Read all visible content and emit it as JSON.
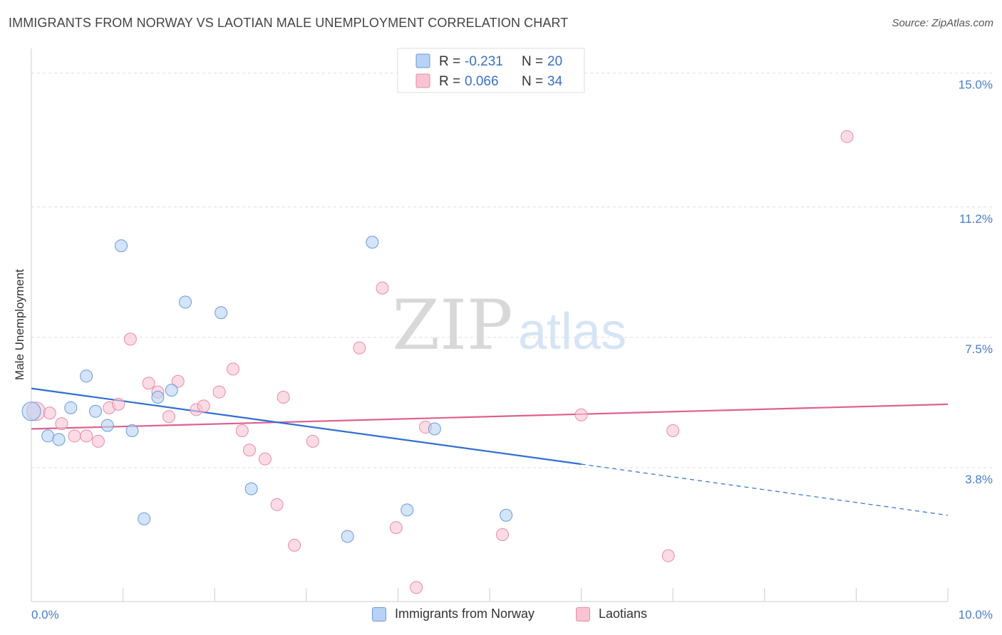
{
  "title": "IMMIGRANTS FROM NORWAY VS LAOTIAN MALE UNEMPLOYMENT CORRELATION CHART",
  "source": "Source: ZipAtlas.com",
  "watermark": {
    "zip": "ZIP",
    "atlas": "atlas"
  },
  "colors": {
    "blue_fill": "#b8d2f5",
    "blue_stroke": "#6a9ad8",
    "blue_line": "#2f6fd0",
    "pink_fill": "#f8c4d4",
    "pink_stroke": "#e88aa8",
    "pink_line": "#e06090",
    "axis_text": "#4a7cc7"
  },
  "legend": {
    "series1": {
      "r_label": "R = ",
      "r_value": "-0.231",
      "n_label": "N = ",
      "n_value": "20"
    },
    "series2": {
      "r_label": "R = ",
      "r_value": "0.066",
      "n_label": "N = ",
      "n_value": "34"
    }
  },
  "chart_data": {
    "type": "scatter",
    "title": "IMMIGRANTS FROM NORWAY VS LAOTIAN MALE UNEMPLOYMENT CORRELATION CHART",
    "xlabel": "",
    "ylabel": "Male Unemployment",
    "xlim": [
      0,
      10
    ],
    "ylim": [
      0,
      15.5
    ],
    "x_tick_labels": [
      "0.0%",
      "10.0%"
    ],
    "y_ticks": [
      3.8,
      7.5,
      11.2,
      15.0
    ],
    "y_tick_labels": [
      "3.8%",
      "7.5%",
      "11.2%",
      "15.0%"
    ],
    "grid": true,
    "legend_position": "top-center",
    "series": [
      {
        "name": "Immigrants from Norway",
        "color": "#b8d2f5",
        "points": [
          [
            0.0,
            5.4
          ],
          [
            0.18,
            4.7
          ],
          [
            0.3,
            4.6
          ],
          [
            0.43,
            5.5
          ],
          [
            0.6,
            6.4
          ],
          [
            0.7,
            5.4
          ],
          [
            0.83,
            5.0
          ],
          [
            0.98,
            10.1
          ],
          [
            1.1,
            4.85
          ],
          [
            1.23,
            2.35
          ],
          [
            1.38,
            5.8
          ],
          [
            1.53,
            6.0
          ],
          [
            1.68,
            8.5
          ],
          [
            2.07,
            8.2
          ],
          [
            2.4,
            3.2
          ],
          [
            3.45,
            1.85
          ],
          [
            3.72,
            10.2
          ],
          [
            4.1,
            2.6
          ],
          [
            4.4,
            4.9
          ],
          [
            5.18,
            2.45
          ]
        ],
        "trend": {
          "x0": 0.0,
          "y0": 6.05,
          "x1": 6.0,
          "y1": 3.9,
          "dash_x1": 10.0,
          "dash_y1": 2.45
        }
      },
      {
        "name": "Laotians",
        "color": "#f8c4d4",
        "points": [
          [
            0.05,
            5.4
          ],
          [
            0.2,
            5.35
          ],
          [
            0.33,
            5.05
          ],
          [
            0.47,
            4.7
          ],
          [
            0.6,
            4.7
          ],
          [
            0.73,
            4.55
          ],
          [
            0.85,
            5.5
          ],
          [
            0.95,
            5.6
          ],
          [
            1.08,
            7.45
          ],
          [
            1.28,
            6.2
          ],
          [
            1.38,
            5.95
          ],
          [
            1.5,
            5.25
          ],
          [
            1.6,
            6.25
          ],
          [
            1.8,
            5.45
          ],
          [
            1.88,
            5.55
          ],
          [
            2.05,
            5.95
          ],
          [
            2.2,
            6.6
          ],
          [
            2.3,
            4.85
          ],
          [
            2.38,
            4.3
          ],
          [
            2.55,
            4.05
          ],
          [
            2.68,
            2.75
          ],
          [
            2.75,
            5.8
          ],
          [
            2.87,
            1.6
          ],
          [
            3.07,
            4.55
          ],
          [
            3.58,
            7.2
          ],
          [
            3.83,
            8.9
          ],
          [
            3.98,
            2.1
          ],
          [
            4.2,
            0.4
          ],
          [
            4.3,
            4.95
          ],
          [
            5.14,
            1.9
          ],
          [
            6.0,
            5.3
          ],
          [
            6.95,
            1.3
          ],
          [
            7.0,
            4.85
          ],
          [
            8.9,
            13.2
          ]
        ],
        "trend": {
          "x0": 0.0,
          "y0": 4.9,
          "x1": 10.0,
          "y1": 5.6
        }
      }
    ]
  },
  "bottom_legend": {
    "item1": "Immigrants from Norway",
    "item2": "Laotians"
  }
}
